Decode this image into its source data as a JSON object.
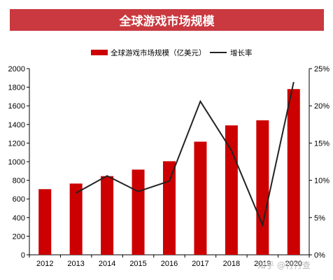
{
  "title": "全球游戏市场规模",
  "watermark": "知乎 @行行查",
  "colors": {
    "bar": "#cc0000",
    "line": "#222222",
    "banner": "#c9393f"
  },
  "chart_data": {
    "type": "bar",
    "categories": [
      "2012",
      "2013",
      "2014",
      "2015",
      "2016",
      "2017",
      "2018",
      "2019",
      "2020"
    ],
    "series": [
      {
        "name": "全球游戏市场规模（亿美元）",
        "type": "bar",
        "axis": "left",
        "values": [
          705,
          765,
          845,
          915,
          1005,
          1215,
          1390,
          1445,
          1780
        ]
      },
      {
        "name": "增长率",
        "type": "line",
        "axis": "right",
        "unit": "%",
        "values": [
          null,
          8.3,
          10.6,
          8.5,
          9.9,
          20.6,
          14.0,
          4.0,
          23.2
        ]
      }
    ],
    "ylim_left": [
      0,
      2000
    ],
    "yticks_left": [
      "0",
      "200",
      "400",
      "600",
      "800",
      "1000",
      "1200",
      "1400",
      "1600",
      "1800",
      "2000"
    ],
    "ylim_right": [
      0,
      25
    ],
    "yticks_right": [
      "0%",
      "5%",
      "10%",
      "15%",
      "20%",
      "25%"
    ],
    "legend_position": "top",
    "grid": false
  }
}
